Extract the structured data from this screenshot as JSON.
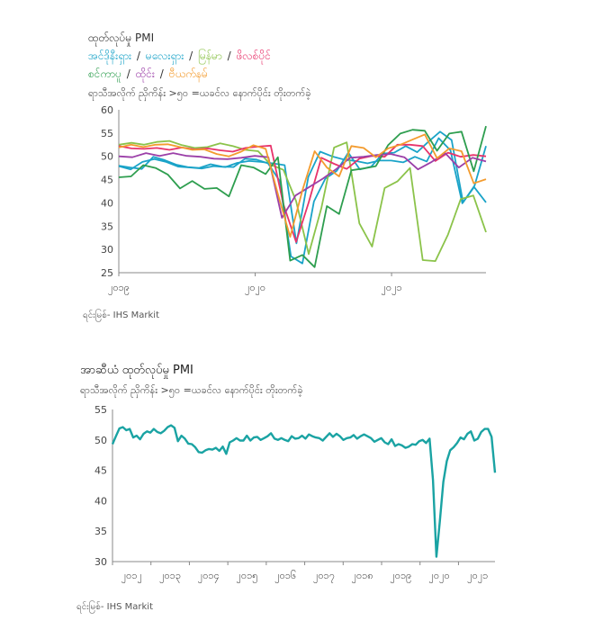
{
  "chart1": {
    "title": "ထုတ်လုပ်မှု PMI",
    "legend_row1": [
      {
        "label": "အင်ဒိုနီးရှား",
        "color": "#1aa3c8"
      },
      {
        "label": " / ",
        "color": "#333333"
      },
      {
        "label": "မလေးရှား",
        "color": "#1aa3c8"
      },
      {
        "label": " / ",
        "color": "#333333"
      },
      {
        "label": "မြန်မာ",
        "color": "#8bc34a"
      },
      {
        "label": " / ",
        "color": "#333333"
      },
      {
        "label": "ဖိလစ်ပိုင်",
        "color": "#e8336b"
      }
    ],
    "legend_row2": [
      {
        "label": "စင်ကာပူ",
        "color": "#2e9e4f"
      },
      {
        "label": " / ",
        "color": "#333333"
      },
      {
        "label": "ထိုင်း",
        "color": "#9b3fa8"
      },
      {
        "label": " / ",
        "color": "#333333"
      },
      {
        "label": "ဗီယက်နမ်",
        "color": "#f39b2e"
      }
    ],
    "subtitle": "ရာသီအလိုက် ညှိကိန်း >၅၀ =ယခင်လ နောက်ပိုင်း တိုးတက်ခဲ့",
    "source": "ရင်းမြစ်- IHS Markit"
  },
  "chart2": {
    "title": "အာဆီယံ ထုတ်လုပ်မှု PMI",
    "subtitle": "ရာသီအလိုက် ညှိကိန်း >၅၀ =ယခင်လ နောက်ပိုင်း တိုးတက်ခဲ့",
    "source": "ရင်းမြစ်- IHS Markit"
  },
  "chart_data": [
    {
      "type": "line",
      "title": "ထုတ်လုပ်မှု PMI",
      "subtitle": "ရာသီအလိုက် ညှိကိန်း >၅၀ =ယခင်လ နောက်ပိုင်း တိုးတက်ခဲ့",
      "ylim": [
        25,
        60
      ],
      "yticks": [
        25,
        30,
        35,
        40,
        45,
        50,
        55,
        60
      ],
      "x_range": [
        0,
        35
      ],
      "xticks": [
        {
          "x": 0,
          "label": "၂၀၁၉"
        },
        {
          "x": 13,
          "label": "၂၀၂၀"
        },
        {
          "x": 26,
          "label": "၂၀၂၁"
        }
      ],
      "legend": "top",
      "grid": false,
      "series": [
        {
          "name": "အင်ဒိုနီးရှား",
          "color": "#1aa3c8",
          "values": [
            48,
            47.6,
            47.3,
            49.9,
            49.2,
            48.2,
            47.7,
            47.5,
            48.3,
            47.8,
            47.7,
            49.5,
            49.3,
            48.5,
            44.8,
            28.5,
            27,
            40.3,
            45.2,
            46.9,
            50.8,
            47.2,
            47.8,
            50.6,
            50.8,
            52.2,
            50.9,
            53.2,
            55.3,
            53.5,
            40.1,
            43.7,
            52.2
          ]
        },
        {
          "name": "မလေးရှား",
          "color": "#1aa3c8",
          "values": [
            47.9,
            47.2,
            48.8,
            49.4,
            48.8,
            47.8,
            47.6,
            47.4,
            47.9,
            47.7,
            48.6,
            49.0,
            48.8,
            48.5,
            48.1,
            31.3,
            45.6,
            51.0,
            50.0,
            49.3,
            49.0,
            48.5,
            49.1,
            49.1,
            48.7,
            49.9,
            48.9,
            53.9,
            51.3,
            39.9,
            43.4,
            40.1
          ]
        },
        {
          "name": "မြန်မာ",
          "color": "#8bc34a",
          "values": [
            52.5,
            52.9,
            52.5,
            53.1,
            53.3,
            52.4,
            51.8,
            52.0,
            52.8,
            52.2,
            51.4,
            51.1,
            48.2,
            47.1,
            40.4,
            29.0,
            38.9,
            51.9,
            53.0,
            35.6,
            30.6,
            43.2,
            44.6,
            47.5,
            27.7,
            27.5,
            33.2,
            40.8,
            41.6,
            33.7
          ]
        },
        {
          "name": "ဖိလစ်ပိုင်",
          "color": "#e8336b",
          "values": [
            52.2,
            51.7,
            51.6,
            51.8,
            51.4,
            51.9,
            51.5,
            51.7,
            51.3,
            51.0,
            51.8,
            52.1,
            52.3,
            39.7,
            31.6,
            40.1,
            49.7,
            48.4,
            47.3,
            49.5,
            50.1,
            49.9,
            52.5,
            52.5,
            52.2,
            49.0,
            50.8,
            49.9,
            50.3,
            50.0
          ]
        },
        {
          "name": "စင်ကာပူ",
          "color": "#2e9e4f",
          "values": [
            45.5,
            45.7,
            48.1,
            47.5,
            46.1,
            43.1,
            44.7,
            43.0,
            43.2,
            41.4,
            48.1,
            47.6,
            46.2,
            49.8,
            27.6,
            28.8,
            26.2,
            39.3,
            37.6,
            47.0,
            47.4,
            47.9,
            52.4,
            54.9,
            55.7,
            55.5,
            51.2,
            54.9,
            55.3,
            46.8,
            56.5
          ]
        },
        {
          "name": "ထိုင်း",
          "color": "#9b3fa8",
          "values": [
            50.0,
            49.8,
            50.7,
            50.1,
            50.7,
            50.1,
            49.9,
            49.5,
            49.4,
            49.7,
            50.1,
            49.8,
            36.8,
            41.6,
            43.4,
            45.2,
            47.3,
            49.7,
            49.9,
            50.3,
            50.5,
            49.8,
            47.2,
            48.8,
            50.7,
            47.6,
            49.7,
            48.9
          ]
        },
        {
          "name": "ဗီယက်နမ်",
          "color": "#f39b2e",
          "values": [
            51.9,
            52.5,
            52.0,
            52.5,
            52.6,
            52.0,
            51.4,
            51.5,
            50.5,
            50.0,
            51.0,
            52.4,
            51.6,
            41.9,
            32.7,
            42.7,
            51.1,
            47.6,
            45.7,
            52.2,
            51.8,
            49.8,
            51.7,
            52.5,
            53.6,
            54.7,
            49.6,
            51.7,
            51.1,
            44.2,
            45.1
          ]
        }
      ],
      "source": "ရင်းမြစ်- IHS Markit"
    },
    {
      "type": "line",
      "title": "အာဆီယံ ထုတ်လုပ်မှု PMI",
      "subtitle": "ရာသီအလိုက် ညှိကိန်း >၅၀ =ယခင်လ နောက်ပိုင်း တိုးတက်ခဲ့",
      "ylim": [
        30,
        55
      ],
      "yticks": [
        30,
        35,
        40,
        45,
        50,
        55
      ],
      "xticks": [
        "၂၀၁၂",
        "၂၀၁၃",
        "၂၀၁၄",
        "၂၀၁၅",
        "၂၀၁၆",
        "၂၀၁၇",
        "၂၀၁၈",
        "၂၀၁၉",
        "၂၀၂၀",
        "၂၀၂၁"
      ],
      "grid": false,
      "series": [
        {
          "name": "",
          "color": "#1aa3a3",
          "values": [
            49.3,
            50.6,
            51.9,
            52.1,
            51.6,
            51.8,
            50.4,
            50.7,
            50.1,
            51.0,
            51.4,
            51.2,
            51.8,
            51.3,
            51.1,
            51.5,
            52.1,
            52.4,
            52.0,
            49.8,
            50.7,
            50.2,
            49.4,
            49.3,
            48.8,
            48.0,
            47.9,
            48.3,
            48.5,
            48.4,
            48.7,
            48.2,
            48.9,
            47.7,
            49.6,
            49.9,
            50.3,
            49.9,
            49.9,
            50.7,
            49.9,
            50.4,
            50.5,
            50.0,
            50.3,
            50.6,
            51.1,
            50.2,
            50.0,
            50.3,
            50.0,
            49.8,
            50.6,
            50.2,
            50.3,
            50.7,
            50.2,
            50.9,
            50.6,
            50.4,
            50.3,
            49.9,
            50.5,
            51.1,
            50.5,
            51.0,
            50.6,
            50.0,
            50.3,
            50.4,
            50.8,
            50.2,
            50.6,
            50.9,
            50.6,
            50.3,
            49.7,
            50.0,
            50.3,
            49.6,
            49.3,
            50.1,
            49.0,
            49.3,
            49.1,
            48.7,
            48.9,
            49.3,
            49.2,
            49.8,
            50.0,
            49.5,
            50.2,
            43.4,
            30.8,
            36.6,
            43.1,
            46.5,
            48.3,
            48.8,
            49.5,
            50.4,
            50.1,
            51.0,
            51.4,
            49.9,
            50.2,
            51.3,
            51.8,
            51.8,
            50.5,
            44.6
          ]
        }
      ],
      "source": "ရင်းမြစ်- IHS Markit"
    }
  ]
}
